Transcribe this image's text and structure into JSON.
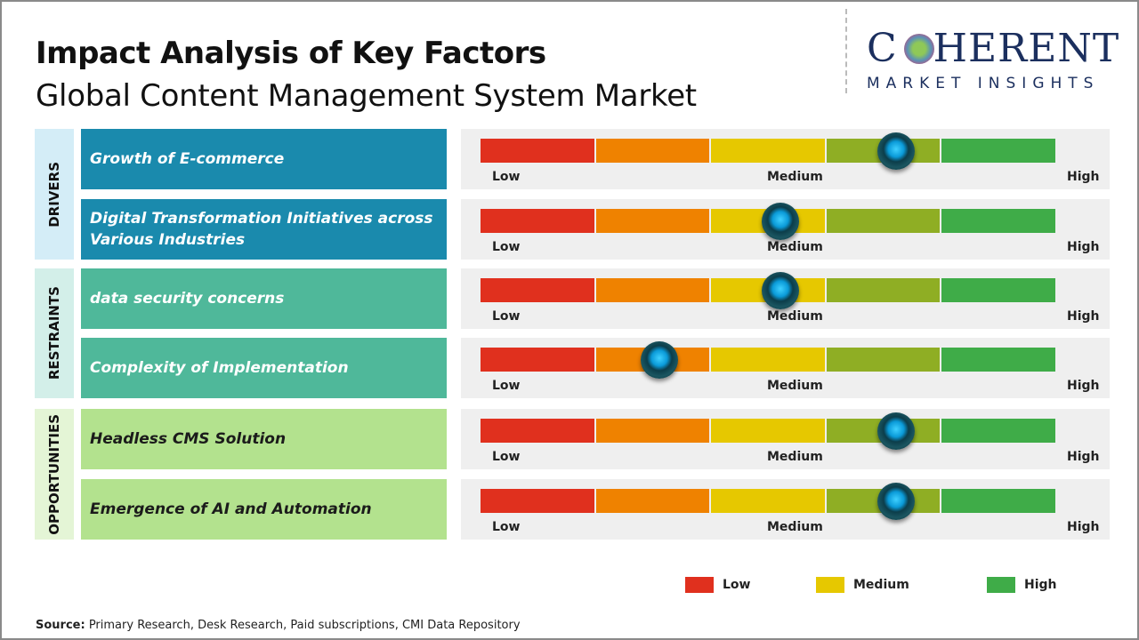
{
  "title": "Impact Analysis of Key Factors",
  "subtitle": "Global Content Management System Market",
  "logo": {
    "main": "COHERENT",
    "sub": "MARKET INSIGHTS"
  },
  "chart_data": {
    "type": "gauge-table",
    "scale_labels": {
      "low": "Low",
      "medium": "Medium",
      "high": "High"
    },
    "segment_colors": [
      "#e0301e",
      "#ef8200",
      "#e6c800",
      "#8fae24",
      "#3fac48"
    ],
    "categories": [
      {
        "name": "DRIVERS",
        "box_color": "#1a8aad",
        "label_bg": "#d4edf7",
        "text_color": "#ffffff"
      },
      {
        "name": "RESTRAINTS",
        "box_color": "#4fb89a",
        "label_bg": "#d3efe9",
        "text_color": "#ffffff"
      },
      {
        "name": "OPPORTUNITIES",
        "box_color": "#b3e28e",
        "label_bg": "#e4f5d6",
        "text_color": "#1b1b1b"
      }
    ],
    "factors": [
      {
        "category": 0,
        "label": "Growth of E-commerce",
        "impact": 0.72
      },
      {
        "category": 0,
        "label": "Digital Transformation Initiatives across Various Industries",
        "impact": 0.52
      },
      {
        "category": 1,
        "label": "data security concerns",
        "impact": 0.52
      },
      {
        "category": 1,
        "label": "Complexity of Implementation",
        "impact": 0.31
      },
      {
        "category": 2,
        "label": "Headless CMS Solution",
        "impact": 0.72
      },
      {
        "category": 2,
        "label": "Emergence of AI and Automation",
        "impact": 0.72
      }
    ],
    "legend": [
      {
        "label": "Low",
        "color": "#e0301e"
      },
      {
        "label": "Medium",
        "color": "#e6c800"
      },
      {
        "label": "High",
        "color": "#3fac48"
      }
    ]
  },
  "source": {
    "label": "Source:",
    "text": " Primary Research, Desk Research, Paid subscriptions, CMI Data Repository"
  }
}
